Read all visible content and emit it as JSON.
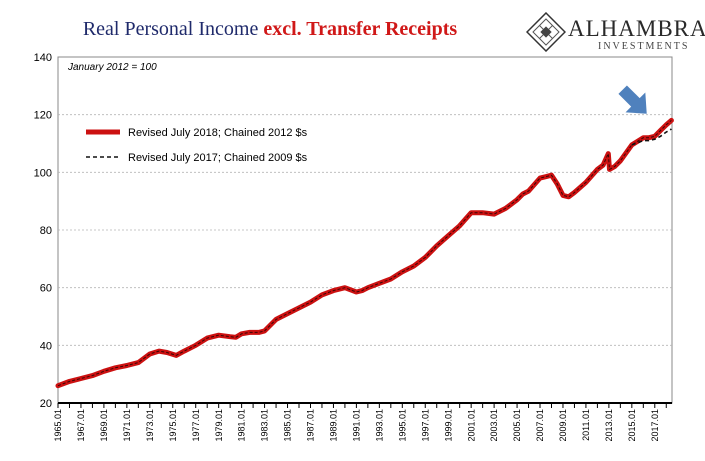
{
  "header": {
    "title_part1": "Real Personal Income ",
    "title_part2": "excl. Transfer Receipts"
  },
  "logo": {
    "name": "ALHAMBRA",
    "subtitle": "INVESTMENTS"
  },
  "colors": {
    "title_navy": "#1f2a6b",
    "title_red": "#d01818",
    "series_2018": "#cc1111",
    "series_2017": "#111111",
    "arrow": "#4f81bd"
  },
  "chart_data": {
    "type": "line",
    "annotation": "January 2012 = 100",
    "ylim": [
      20,
      140
    ],
    "y_ticks": [
      20,
      40,
      60,
      80,
      100,
      120,
      140
    ],
    "x_tick_labels": [
      "1965.01",
      "1967.01",
      "1969.01",
      "1971.01",
      "1973.01",
      "1975.01",
      "1977.01",
      "1979.01",
      "1981.01",
      "1983.01",
      "1985.01",
      "1987.01",
      "1989.01",
      "1991.01",
      "1993.01",
      "1995.01",
      "1997.01",
      "1999.01",
      "2001.01",
      "2003.01",
      "2005.01",
      "2007.01",
      "2009.01",
      "2011.01",
      "2013.01",
      "2015.01",
      "2017.01"
    ],
    "grid": "horizontal",
    "legend_position": "top-left",
    "series": [
      {
        "name": "Revised July 2018; Chained 2012 $s",
        "style": "solid",
        "x": [
          1965.0,
          1966.0,
          1967.0,
          1968.0,
          1969.0,
          1970.0,
          1971.0,
          1972.0,
          1973.0,
          1973.8,
          1974.5,
          1975.3,
          1976.0,
          1977.0,
          1978.0,
          1979.0,
          1980.0,
          1980.5,
          1981.0,
          1981.7,
          1982.5,
          1983.0,
          1984.0,
          1985.0,
          1986.0,
          1987.0,
          1988.0,
          1989.0,
          1990.0,
          1991.0,
          1991.5,
          1992.0,
          1993.0,
          1994.0,
          1995.0,
          1996.0,
          1997.0,
          1998.0,
          1999.0,
          2000.0,
          2001.0,
          2002.0,
          2003.0,
          2004.0,
          2005.0,
          2005.5,
          2006.0,
          2007.0,
          2007.5,
          2008.0,
          2008.5,
          2009.0,
          2009.5,
          2010.0,
          2011.0,
          2012.0,
          2012.5,
          2012.95,
          2013.05,
          2013.5,
          2014.0,
          2015.0,
          2016.0,
          2016.5,
          2017.0,
          2017.5,
          2018.0,
          2018.45
        ],
        "values": [
          26.0,
          27.5,
          28.5,
          29.5,
          31.0,
          32.2,
          33.0,
          34.0,
          37.0,
          38.0,
          37.5,
          36.5,
          38.0,
          40.0,
          42.5,
          43.5,
          43.0,
          42.8,
          44.0,
          44.5,
          44.5,
          45.0,
          49.0,
          51.0,
          53.0,
          55.0,
          57.5,
          59.0,
          60.0,
          58.5,
          59.0,
          60.0,
          61.5,
          63.0,
          65.5,
          67.5,
          70.5,
          74.5,
          78.0,
          81.5,
          86.0,
          86.0,
          85.5,
          87.5,
          90.5,
          92.5,
          93.5,
          98.0,
          98.5,
          99.0,
          96.0,
          92.0,
          91.5,
          93.0,
          96.5,
          101.0,
          102.5,
          106.5,
          101.0,
          102.0,
          104.0,
          109.5,
          112.0,
          112.0,
          112.5,
          114.5,
          116.5,
          118.0
        ]
      },
      {
        "name": "Revised July 2017; Chained 2009 $s",
        "style": "dashed",
        "x": [
          2015.0,
          2016.0,
          2016.5,
          2017.0,
          2017.5,
          2018.0,
          2018.45
        ],
        "values": [
          109.5,
          111.0,
          111.0,
          111.5,
          112.5,
          114.0,
          115.0
        ]
      }
    ]
  }
}
